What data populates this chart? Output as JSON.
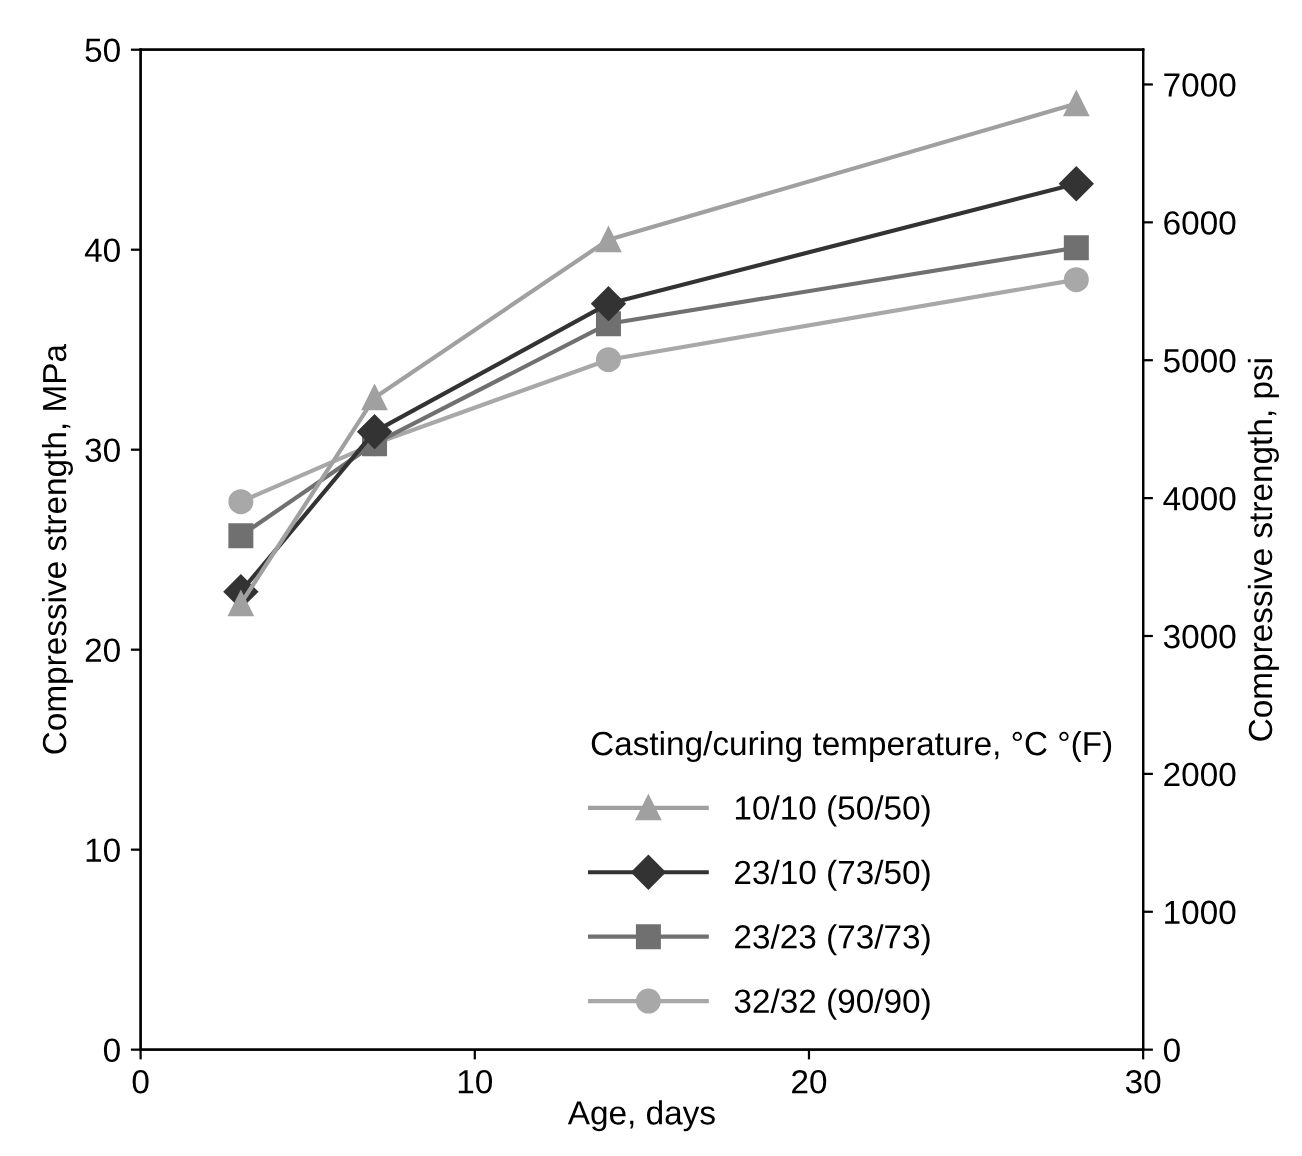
{
  "chart_data": {
    "type": "line",
    "xlabel": "Age, days",
    "ylabel": "Compressive strength, MPa",
    "y2label": "Compressive strength, psi",
    "legend_title": "Casting/curing temperature, °C °(F)",
    "legend": "bottom right",
    "grid": false,
    "x": [
      3,
      7,
      14,
      28
    ],
    "xlim": [
      0,
      30
    ],
    "xticks": [
      0,
      10,
      20,
      30
    ],
    "ylim": [
      0,
      50
    ],
    "yticks": [
      0,
      10,
      20,
      30,
      40,
      50
    ],
    "y2lim": [
      0,
      7252
    ],
    "y2ticks": [
      0,
      1000,
      2000,
      3000,
      4000,
      5000,
      6000,
      7000
    ],
    "series": [
      {
        "name": "10/10 (50/50)",
        "color": "#a0a0a0",
        "marker": "triangle",
        "values": [
          22.3,
          32.6,
          40.5,
          47.3
        ]
      },
      {
        "name": "23/10 (73/50)",
        "color": "#333333",
        "marker": "diamond",
        "values": [
          22.9,
          30.9,
          37.3,
          43.3
        ]
      },
      {
        "name": "23/23 (73/73)",
        "color": "#707070",
        "marker": "square",
        "values": [
          25.7,
          30.3,
          36.3,
          40.1
        ]
      },
      {
        "name": "32/32 (90/90)",
        "color": "#a8a8a8",
        "marker": "circle",
        "values": [
          27.4,
          30.3,
          34.5,
          38.5
        ]
      }
    ]
  }
}
